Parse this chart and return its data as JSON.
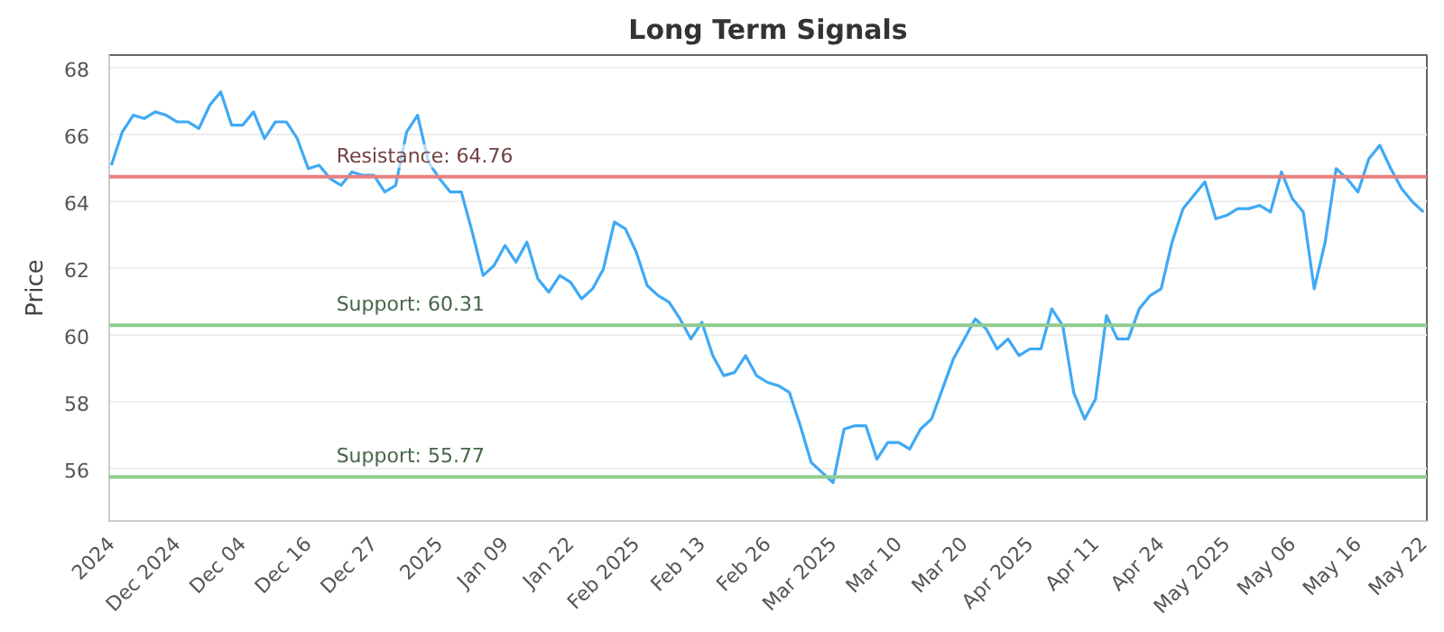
{
  "chart_data": {
    "type": "line",
    "title": "Long Term Signals",
    "ylabel": "Price",
    "categories": [
      "2024",
      null,
      null,
      null,
      null,
      null,
      "Dec 2024",
      null,
      null,
      null,
      null,
      null,
      "Dec 04",
      null,
      null,
      null,
      null,
      null,
      "Dec 16",
      null,
      null,
      null,
      null,
      null,
      "Dec 27",
      null,
      null,
      null,
      null,
      null,
      "2025",
      null,
      null,
      null,
      null,
      null,
      "Jan 09",
      null,
      null,
      null,
      null,
      null,
      "Jan 22",
      null,
      null,
      null,
      null,
      null,
      "Feb 2025",
      null,
      null,
      null,
      null,
      null,
      "Feb 13",
      null,
      null,
      null,
      null,
      null,
      "Feb 26",
      null,
      null,
      null,
      null,
      null,
      "Mar 2025",
      null,
      null,
      null,
      null,
      null,
      "Mar 10",
      null,
      null,
      null,
      null,
      null,
      "Mar 20",
      null,
      null,
      null,
      null,
      null,
      "Apr 2025",
      null,
      null,
      null,
      null,
      null,
      "Apr 11",
      null,
      null,
      null,
      null,
      null,
      "Apr 24",
      null,
      null,
      null,
      null,
      null,
      "May 2025",
      null,
      null,
      null,
      null,
      null,
      "May 06",
      null,
      null,
      null,
      null,
      null,
      "May 16",
      null,
      null,
      null,
      null,
      null,
      "May 22"
    ],
    "series": [
      {
        "color": "#3fa9f5",
        "values": [
          65.1,
          66.1,
          66.6,
          66.5,
          66.7,
          66.6,
          66.4,
          66.4,
          66.2,
          66.9,
          67.3,
          66.3,
          66.3,
          66.7,
          65.9,
          66.4,
          66.4,
          65.9,
          65.0,
          65.1,
          64.7,
          64.5,
          64.9,
          64.8,
          64.8,
          64.3,
          64.5,
          66.1,
          66.6,
          65.2,
          64.7,
          64.3,
          64.3,
          63.1,
          61.8,
          62.1,
          62.7,
          62.2,
          62.8,
          61.7,
          61.3,
          61.8,
          61.6,
          61.1,
          61.4,
          62.0,
          63.4,
          63.2,
          62.5,
          61.5,
          61.2,
          61.0,
          60.5,
          59.9,
          60.4,
          59.4,
          58.8,
          58.9,
          59.4,
          58.8,
          58.6,
          58.5,
          58.3,
          57.3,
          56.2,
          55.9,
          55.6,
          57.2,
          57.3,
          57.3,
          56.3,
          56.8,
          56.8,
          56.6,
          57.2,
          57.5,
          58.4,
          59.3,
          59.9,
          60.5,
          60.2,
          59.6,
          59.9,
          59.4,
          59.6,
          59.6,
          60.8,
          60.3,
          58.3,
          57.5,
          58.1,
          60.6,
          59.9,
          59.9,
          60.8,
          61.2,
          61.4,
          62.8,
          63.8,
          64.2,
          64.6,
          63.5,
          63.6,
          63.8,
          63.8,
          63.9,
          63.7,
          64.9,
          64.1,
          63.7,
          61.4,
          62.8,
          65.0,
          64.7,
          64.3,
          65.3,
          65.7,
          65.0,
          64.4,
          64.0,
          63.7
        ]
      }
    ],
    "ylim": [
      54.45,
      68.4
    ],
    "yticks": [
      56,
      58,
      60,
      62,
      64,
      66,
      68
    ],
    "grid": "y",
    "marker": "none",
    "line_style": "solid",
    "ref_lines": [
      {
        "axis": "y",
        "value": 64.76,
        "label": "Resistance: 64.76",
        "color": "#e88080"
      },
      {
        "axis": "y",
        "value": 60.31,
        "label": "Support: 60.31",
        "color": "#8fcc8f"
      },
      {
        "axis": "y",
        "value": 55.77,
        "label": "Support: 55.77",
        "color": "#8fcc8f"
      }
    ]
  }
}
